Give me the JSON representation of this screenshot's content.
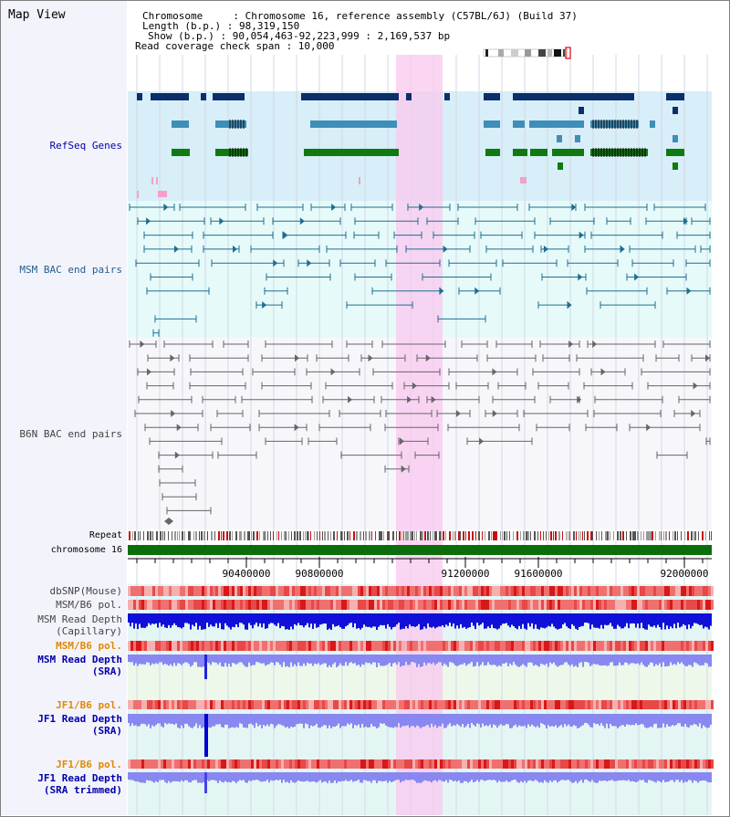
{
  "title": "Map View",
  "info": {
    "chromosome": "Chromosome     : Chromosome 16, reference assembly (C57BL/6J) (Build 37)",
    "length": "Length (b.p.) : 98,319,150",
    "show": "Show (b.p.) : 90,054,463-92,223,999 : 2,169,537 bp",
    "coverage": "Read coverage check span : 10,000"
  },
  "tracks": {
    "refseq": "RefSeq Genes",
    "msm_bac": "MSM BAC end pairs",
    "b6n_bac": "B6N BAC end pairs",
    "repeat": "Repeat",
    "chrom": "chromosome 16",
    "dbsnp": "dbSNP(Mouse)",
    "msm_pol": "MSM/B6 pol.",
    "msm_depth_cap": "MSM Read Depth\n(Capillary)",
    "msm_pol2": "MSM/B6 pol.",
    "msm_depth_sra": "MSM Read Depth\n(SRA)",
    "jf1_pol": "JF1/B6 pol.",
    "jf1_depth_sra": "JF1 Read Depth\n(SRA)",
    "jf1_pol2": "JF1/B6 pol.",
    "jf1_depth_trim": "JF1 Read Depth\n(SRA trimmed)"
  },
  "axis": {
    "ticks": [
      "90400000",
      "90800000",
      "91200000",
      "91600000",
      "92000000"
    ]
  },
  "colors": {
    "label_blue": "#0000aa",
    "label_teal": "#1f5f8f",
    "label_gray": "#444444",
    "label_orange": "#e08a00",
    "highlight": "#f9c8ef"
  }
}
